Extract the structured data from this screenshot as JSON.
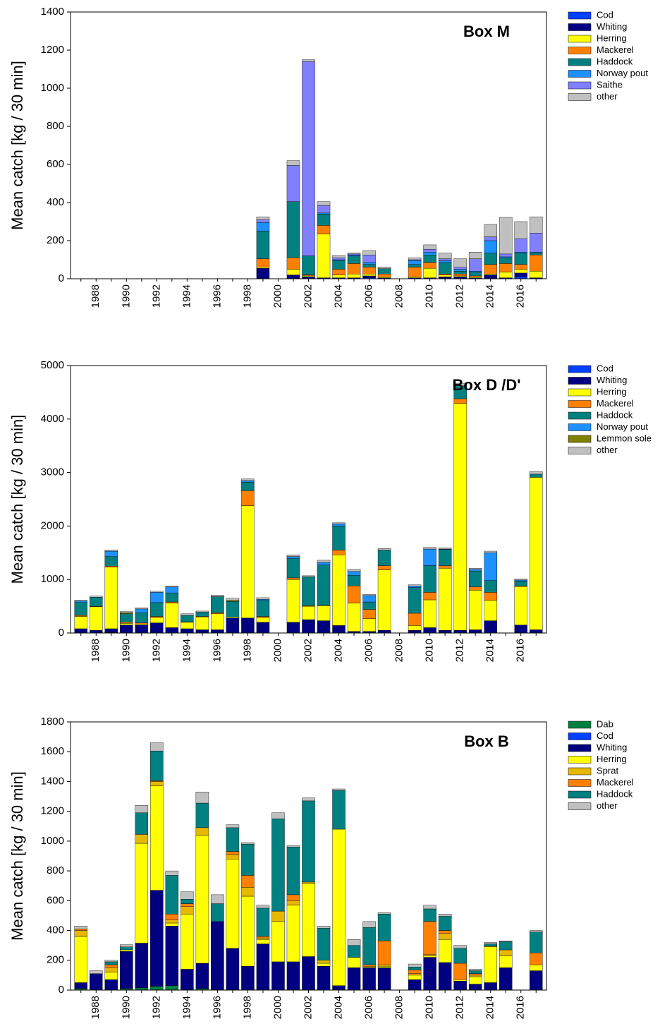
{
  "chart_data": [
    {
      "type": "bar",
      "stacked": true,
      "title": "Box M",
      "y_label": "Mean catch [kg / 30 min]",
      "categories": [
        null,
        "1988",
        null,
        "1990",
        null,
        "1992",
        null,
        "1994",
        null,
        "1996",
        null,
        "1998",
        null,
        "2000",
        null,
        "2002",
        null,
        "2004",
        null,
        "2006",
        null,
        "2008",
        null,
        "2010",
        null,
        "2012",
        null,
        "2014",
        null,
        "2016",
        null
      ],
      "ylim": [
        0,
        1400
      ],
      "yticks": [
        0,
        200,
        400,
        600,
        800,
        1000,
        1200,
        1400
      ],
      "series": [
        {
          "name": "Cod",
          "color": "#0040ff",
          "values": [
            null,
            null,
            null,
            null,
            null,
            null,
            null,
            null,
            null,
            null,
            null,
            null,
            0,
            null,
            0,
            0,
            0,
            0,
            0,
            5,
            0,
            null,
            0,
            0,
            0,
            0,
            0,
            0,
            0,
            10,
            0
          ]
        },
        {
          "name": "Whiting",
          "color": "#000080",
          "values": [
            null,
            null,
            null,
            null,
            null,
            null,
            null,
            null,
            null,
            null,
            null,
            null,
            55,
            null,
            20,
            10,
            5,
            5,
            5,
            10,
            5,
            null,
            5,
            5,
            10,
            10,
            5,
            20,
            5,
            20,
            5
          ]
        },
        {
          "name": "Herring",
          "color": "#ffff00",
          "values": [
            null,
            null,
            null,
            null,
            null,
            null,
            null,
            null,
            null,
            null,
            null,
            null,
            5,
            null,
            30,
            5,
            230,
            15,
            20,
            10,
            5,
            null,
            5,
            50,
            10,
            5,
            5,
            5,
            30,
            20,
            35
          ]
        },
        {
          "name": "Mackerel",
          "color": "#ff8000",
          "values": [
            null,
            null,
            null,
            null,
            null,
            null,
            null,
            null,
            null,
            null,
            null,
            null,
            45,
            null,
            60,
            5,
            45,
            30,
            55,
            35,
            15,
            null,
            50,
            30,
            5,
            10,
            5,
            50,
            45,
            25,
            85
          ]
        },
        {
          "name": "Haddock",
          "color": "#008080",
          "values": [
            null,
            null,
            null,
            null,
            null,
            null,
            null,
            null,
            null,
            null,
            null,
            null,
            145,
            null,
            295,
            100,
            60,
            45,
            40,
            15,
            28,
            null,
            15,
            40,
            60,
            15,
            20,
            60,
            30,
            60,
            10
          ]
        },
        {
          "name": "Norway pout",
          "color": "#1e90ff",
          "values": [
            null,
            null,
            null,
            null,
            null,
            null,
            null,
            null,
            null,
            null,
            null,
            null,
            45,
            null,
            0,
            0,
            5,
            5,
            5,
            10,
            0,
            null,
            20,
            15,
            10,
            10,
            5,
            65,
            5,
            5,
            5
          ]
        },
        {
          "name": "Saithe",
          "color": "#8080ff",
          "values": [
            null,
            null,
            null,
            null,
            null,
            null,
            null,
            null,
            null,
            null,
            null,
            null,
            15,
            null,
            190,
            1020,
            40,
            10,
            5,
            40,
            0,
            null,
            5,
            15,
            10,
            10,
            65,
            20,
            15,
            70,
            100
          ]
        },
        {
          "name": "other",
          "color": "#c0c0c0",
          "values": [
            null,
            null,
            null,
            null,
            null,
            null,
            null,
            null,
            null,
            null,
            null,
            null,
            15,
            null,
            25,
            10,
            20,
            12,
            5,
            23,
            9,
            null,
            10,
            23,
            30,
            45,
            35,
            65,
            192,
            90,
            85
          ]
        }
      ]
    },
    {
      "type": "bar",
      "stacked": true,
      "title": "Box D /D'",
      "y_label": "Mean catch [kg / 30 min]",
      "categories": [
        null,
        "1988",
        null,
        "1990",
        null,
        "1992",
        null,
        "1994",
        null,
        "1996",
        null,
        "1998",
        null,
        "2000",
        null,
        "2002",
        null,
        "2004",
        null,
        "2006",
        null,
        "2008",
        null,
        "2010",
        null,
        "2012",
        null,
        "2014",
        null,
        "2016",
        null
      ],
      "ylim": [
        0,
        5000
      ],
      "yticks": [
        0,
        1000,
        2000,
        3000,
        4000,
        5000
      ],
      "series": [
        {
          "name": "Cod",
          "color": "#0040ff",
          "values": [
            0,
            0,
            10,
            0,
            0,
            0,
            0,
            0,
            0,
            0,
            0,
            0,
            0,
            null,
            0,
            0,
            0,
            0,
            0,
            0,
            0,
            null,
            0,
            0,
            0,
            0,
            0,
            0,
            null,
            0,
            0
          ]
        },
        {
          "name": "Whiting",
          "color": "#000080",
          "values": [
            80,
            50,
            70,
            150,
            150,
            190,
            100,
            80,
            60,
            60,
            280,
            280,
            200,
            null,
            200,
            250,
            230,
            140,
            30,
            30,
            50,
            null,
            50,
            100,
            50,
            50,
            60,
            230,
            null,
            150,
            60
          ]
        },
        {
          "name": "Herring",
          "color": "#ffff00",
          "values": [
            230,
            440,
            1150,
            30,
            20,
            100,
            460,
            120,
            240,
            300,
            20,
            2100,
            90,
            null,
            800,
            250,
            280,
            1320,
            530,
            240,
            1130,
            null,
            90,
            520,
            1160,
            4240,
            740,
            380,
            null,
            720,
            2850
          ]
        },
        {
          "name": "Mackerel",
          "color": "#ff8000",
          "values": [
            20,
            10,
            20,
            20,
            20,
            20,
            20,
            10,
            10,
            20,
            0,
            280,
            20,
            null,
            30,
            10,
            10,
            90,
            320,
            170,
            80,
            null,
            230,
            140,
            50,
            90,
            60,
            150,
            null,
            10,
            0
          ]
        },
        {
          "name": "Haddock",
          "color": "#008080",
          "values": [
            240,
            170,
            180,
            160,
            190,
            260,
            170,
            120,
            80,
            300,
            290,
            160,
            300,
            null,
            360,
            540,
            750,
            450,
            200,
            140,
            290,
            null,
            480,
            500,
            300,
            240,
            300,
            220,
            null,
            90,
            60
          ]
        },
        {
          "name": "Norway pout",
          "color": "#1e90ff",
          "values": [
            30,
            0,
            100,
            0,
            70,
            190,
            110,
            0,
            0,
            0,
            0,
            30,
            20,
            null,
            40,
            0,
            50,
            40,
            70,
            120,
            0,
            null,
            30,
            310,
            10,
            0,
            30,
            520,
            null,
            20,
            0
          ]
        },
        {
          "name": "Lemmon sole",
          "color": "#808000",
          "values": [
            0,
            0,
            0,
            20,
            0,
            0,
            0,
            0,
            0,
            0,
            20,
            0,
            0,
            null,
            0,
            0,
            0,
            0,
            0,
            0,
            0,
            null,
            0,
            0,
            0,
            0,
            0,
            0,
            null,
            0,
            0
          ]
        },
        {
          "name": "other",
          "color": "#c0c0c0",
          "values": [
            10,
            20,
            20,
            20,
            20,
            20,
            20,
            30,
            20,
            30,
            40,
            30,
            30,
            null,
            30,
            20,
            40,
            20,
            40,
            20,
            30,
            null,
            20,
            30,
            20,
            50,
            20,
            30,
            null,
            20,
            50
          ]
        }
      ]
    },
    {
      "type": "bar",
      "stacked": true,
      "title": "Box B",
      "y_label": "Mean catch [kg / 30 min]",
      "categories": [
        null,
        "1988",
        null,
        "1990",
        null,
        "1992",
        null,
        "1994",
        null,
        "1996",
        null,
        "1998",
        null,
        "2000",
        null,
        "2002",
        null,
        "2004",
        null,
        "2006",
        null,
        "2008",
        null,
        "2010",
        null,
        "2012",
        null,
        "2014",
        null,
        "2016",
        null
      ],
      "ylim": [
        0,
        1800
      ],
      "yticks": [
        0,
        200,
        400,
        600,
        800,
        1000,
        1200,
        1400,
        1600,
        1800
      ],
      "series": [
        {
          "name": "Dab",
          "color": "#008040",
          "values": [
            10,
            0,
            0,
            10,
            15,
            25,
            30,
            0,
            10,
            0,
            0,
            0,
            0,
            0,
            0,
            0,
            0,
            0,
            0,
            0,
            0,
            null,
            0,
            0,
            0,
            0,
            0,
            0,
            0,
            null,
            0
          ]
        },
        {
          "name": "Cod",
          "color": "#0040ff",
          "values": [
            0,
            0,
            0,
            0,
            0,
            0,
            0,
            0,
            0,
            0,
            0,
            0,
            0,
            0,
            0,
            0,
            0,
            0,
            0,
            0,
            0,
            null,
            0,
            0,
            0,
            0,
            0,
            0,
            0,
            null,
            0
          ]
        },
        {
          "name": "Whiting",
          "color": "#000080",
          "values": [
            40,
            110,
            70,
            250,
            300,
            645,
            400,
            140,
            170,
            460,
            280,
            160,
            310,
            190,
            190,
            225,
            160,
            30,
            150,
            150,
            150,
            null,
            70,
            220,
            185,
            60,
            40,
            50,
            150,
            null,
            130
          ]
        },
        {
          "name": "Herring",
          "color": "#ffff00",
          "values": [
            310,
            0,
            50,
            10,
            670,
            700,
            20,
            370,
            860,
            0,
            600,
            470,
            30,
            270,
            380,
            490,
            20,
            1050,
            70,
            0,
            10,
            null,
            30,
            10,
            155,
            10,
            50,
            240,
            80,
            null,
            40
          ]
        },
        {
          "name": "Sprat",
          "color": "#e6b800",
          "values": [
            40,
            0,
            30,
            0,
            60,
            30,
            20,
            50,
            50,
            0,
            30,
            60,
            10,
            70,
            30,
            10,
            20,
            0,
            0,
            10,
            10,
            null,
            10,
            10,
            40,
            0,
            10,
            5,
            40,
            null,
            0
          ]
        },
        {
          "name": "Mackerel",
          "color": "#ff8000",
          "values": [
            10,
            0,
            20,
            0,
            0,
            5,
            40,
            20,
            0,
            0,
            20,
            80,
            10,
            0,
            40,
            0,
            0,
            0,
            0,
            10,
            160,
            null,
            25,
            220,
            20,
            110,
            10,
            0,
            0,
            null,
            80
          ]
        },
        {
          "name": "Haddock",
          "color": "#008080",
          "values": [
            0,
            0,
            20,
            20,
            145,
            200,
            260,
            30,
            165,
            120,
            160,
            210,
            190,
            620,
            320,
            545,
            215,
            260,
            80,
            250,
            180,
            null,
            20,
            85,
            95,
            100,
            20,
            15,
            55,
            null,
            140
          ]
        },
        {
          "name": "other",
          "color": "#c0c0c0",
          "values": [
            20,
            20,
            10,
            15,
            50,
            55,
            30,
            50,
            75,
            60,
            20,
            10,
            20,
            40,
            10,
            20,
            15,
            10,
            40,
            40,
            10,
            null,
            20,
            25,
            15,
            20,
            10,
            10,
            5,
            null,
            10
          ]
        }
      ]
    }
  ]
}
